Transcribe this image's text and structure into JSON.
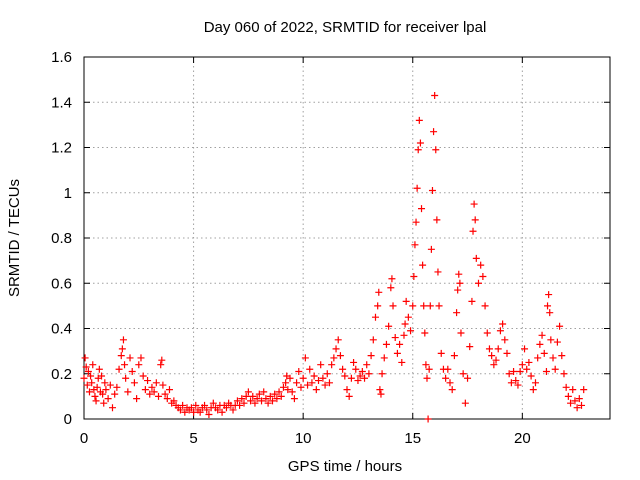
{
  "chart_data": {
    "type": "scatter",
    "title": "Day 060 of 2022, SRMTID for receiver lpal",
    "xlabel": "GPS time / hours",
    "ylabel": "SRMTID / TECUs",
    "xlim": [
      0,
      24
    ],
    "ylim": [
      0,
      1.6
    ],
    "xticks": [
      0,
      5,
      10,
      15,
      20
    ],
    "xtick_labels": [
      "0",
      "5",
      "10",
      "15",
      "20"
    ],
    "yticks": [
      0,
      0.2,
      0.4,
      0.6,
      0.8,
      1.0,
      1.2,
      1.4,
      1.6
    ],
    "ytick_labels": [
      "0",
      "0.2",
      "0.4",
      "0.6",
      "0.8",
      "1",
      "1.2",
      "1.4",
      "1.6"
    ],
    "grid": true,
    "marker": "+",
    "color": "#ff0000",
    "series": [
      {
        "name": "SRMTID",
        "points": [
          [
            0.0,
            0.18
          ],
          [
            0.05,
            0.27
          ],
          [
            0.1,
            0.23
          ],
          [
            0.15,
            0.15
          ],
          [
            0.2,
            0.21
          ],
          [
            0.25,
            0.12
          ],
          [
            0.3,
            0.19
          ],
          [
            0.35,
            0.16
          ],
          [
            0.4,
            0.24
          ],
          [
            0.45,
            0.13
          ],
          [
            0.5,
            0.1
          ],
          [
            0.55,
            0.08
          ],
          [
            0.6,
            0.14
          ],
          [
            0.65,
            0.18
          ],
          [
            0.7,
            0.22
          ],
          [
            0.75,
            0.12
          ],
          [
            0.8,
            0.19
          ],
          [
            0.85,
            0.11
          ],
          [
            0.9,
            0.07
          ],
          [
            0.95,
            0.16
          ],
          [
            1.0,
            0.13
          ],
          [
            1.1,
            0.09
          ],
          [
            1.2,
            0.15
          ],
          [
            1.3,
            0.05
          ],
          [
            1.4,
            0.11
          ],
          [
            1.5,
            0.14
          ],
          [
            1.6,
            0.22
          ],
          [
            1.7,
            0.28
          ],
          [
            1.75,
            0.31
          ],
          [
            1.8,
            0.35
          ],
          [
            1.85,
            0.24
          ],
          [
            1.9,
            0.18
          ],
          [
            2.0,
            0.12
          ],
          [
            2.1,
            0.27
          ],
          [
            2.2,
            0.21
          ],
          [
            2.3,
            0.16
          ],
          [
            2.4,
            0.09
          ],
          [
            2.5,
            0.24
          ],
          [
            2.6,
            0.27
          ],
          [
            2.7,
            0.19
          ],
          [
            2.8,
            0.13
          ],
          [
            2.9,
            0.17
          ],
          [
            3.0,
            0.11
          ],
          [
            3.1,
            0.14
          ],
          [
            3.2,
            0.12
          ],
          [
            3.3,
            0.16
          ],
          [
            3.4,
            0.1
          ],
          [
            3.5,
            0.24
          ],
          [
            3.55,
            0.26
          ],
          [
            3.6,
            0.15
          ],
          [
            3.7,
            0.11
          ],
          [
            3.8,
            0.09
          ],
          [
            3.9,
            0.13
          ],
          [
            4.0,
            0.07
          ],
          [
            4.1,
            0.08
          ],
          [
            4.2,
            0.06
          ],
          [
            4.3,
            0.05
          ],
          [
            4.4,
            0.04
          ],
          [
            4.5,
            0.06
          ],
          [
            4.6,
            0.03
          ],
          [
            4.7,
            0.05
          ],
          [
            4.8,
            0.04
          ],
          [
            4.9,
            0.05
          ],
          [
            5.0,
            0.03
          ],
          [
            5.1,
            0.06
          ],
          [
            5.2,
            0.04
          ],
          [
            5.3,
            0.03
          ],
          [
            5.4,
            0.05
          ],
          [
            5.5,
            0.06
          ],
          [
            5.6,
            0.04
          ],
          [
            5.7,
            0.02
          ],
          [
            5.8,
            0.05
          ],
          [
            5.9,
            0.07
          ],
          [
            6.0,
            0.05
          ],
          [
            6.1,
            0.04
          ],
          [
            6.2,
            0.06
          ],
          [
            6.3,
            0.03
          ],
          [
            6.4,
            0.06
          ],
          [
            6.5,
            0.05
          ],
          [
            6.6,
            0.07
          ],
          [
            6.7,
            0.06
          ],
          [
            6.8,
            0.04
          ],
          [
            6.9,
            0.06
          ],
          [
            7.0,
            0.08
          ],
          [
            7.1,
            0.06
          ],
          [
            7.2,
            0.09
          ],
          [
            7.3,
            0.07
          ],
          [
            7.4,
            0.1
          ],
          [
            7.5,
            0.12
          ],
          [
            7.6,
            0.08
          ],
          [
            7.7,
            0.1
          ],
          [
            7.8,
            0.07
          ],
          [
            7.9,
            0.09
          ],
          [
            8.0,
            0.11
          ],
          [
            8.1,
            0.08
          ],
          [
            8.2,
            0.12
          ],
          [
            8.3,
            0.09
          ],
          [
            8.4,
            0.07
          ],
          [
            8.5,
            0.1
          ],
          [
            8.6,
            0.08
          ],
          [
            8.7,
            0.11
          ],
          [
            8.8,
            0.09
          ],
          [
            8.9,
            0.12
          ],
          [
            9.0,
            0.1
          ],
          [
            9.1,
            0.14
          ],
          [
            9.2,
            0.16
          ],
          [
            9.25,
            0.19
          ],
          [
            9.3,
            0.13
          ],
          [
            9.4,
            0.18
          ],
          [
            9.5,
            0.12
          ],
          [
            9.6,
            0.09
          ],
          [
            9.7,
            0.16
          ],
          [
            9.8,
            0.21
          ],
          [
            9.9,
            0.14
          ],
          [
            10.0,
            0.18
          ],
          [
            10.1,
            0.27
          ],
          [
            10.2,
            0.15
          ],
          [
            10.3,
            0.22
          ],
          [
            10.4,
            0.16
          ],
          [
            10.5,
            0.19
          ],
          [
            10.6,
            0.13
          ],
          [
            10.7,
            0.17
          ],
          [
            10.8,
            0.24
          ],
          [
            10.9,
            0.18
          ],
          [
            11.0,
            0.15
          ],
          [
            11.1,
            0.2
          ],
          [
            11.2,
            0.16
          ],
          [
            11.3,
            0.24
          ],
          [
            11.4,
            0.27
          ],
          [
            11.5,
            0.31
          ],
          [
            11.6,
            0.35
          ],
          [
            11.7,
            0.28
          ],
          [
            11.8,
            0.22
          ],
          [
            11.9,
            0.19
          ],
          [
            12.0,
            0.13
          ],
          [
            12.1,
            0.1
          ],
          [
            12.2,
            0.18
          ],
          [
            12.3,
            0.25
          ],
          [
            12.4,
            0.22
          ],
          [
            12.5,
            0.17
          ],
          [
            12.6,
            0.19
          ],
          [
            12.7,
            0.21
          ],
          [
            12.8,
            0.18
          ],
          [
            12.9,
            0.24
          ],
          [
            13.0,
            0.2
          ],
          [
            13.1,
            0.28
          ],
          [
            13.2,
            0.35
          ],
          [
            13.3,
            0.45
          ],
          [
            13.4,
            0.5
          ],
          [
            13.45,
            0.56
          ],
          [
            13.5,
            0.13
          ],
          [
            13.55,
            0.11
          ],
          [
            13.6,
            0.2
          ],
          [
            13.7,
            0.27
          ],
          [
            13.8,
            0.33
          ],
          [
            13.9,
            0.41
          ],
          [
            14.0,
            0.58
          ],
          [
            14.05,
            0.62
          ],
          [
            14.1,
            0.5
          ],
          [
            14.2,
            0.36
          ],
          [
            14.3,
            0.29
          ],
          [
            14.4,
            0.33
          ],
          [
            14.5,
            0.25
          ],
          [
            14.6,
            0.37
          ],
          [
            14.65,
            0.42
          ],
          [
            14.7,
            0.52
          ],
          [
            14.8,
            0.45
          ],
          [
            14.9,
            0.39
          ],
          [
            15.0,
            0.5
          ],
          [
            15.05,
            0.63
          ],
          [
            15.1,
            0.77
          ],
          [
            15.15,
            0.87
          ],
          [
            15.2,
            1.02
          ],
          [
            15.25,
            1.19
          ],
          [
            15.3,
            1.32
          ],
          [
            15.35,
            1.22
          ],
          [
            15.4,
            0.93
          ],
          [
            15.45,
            0.68
          ],
          [
            15.5,
            0.5
          ],
          [
            15.55,
            0.38
          ],
          [
            15.6,
            0.24
          ],
          [
            15.65,
            0.18
          ],
          [
            15.7,
            0.0
          ],
          [
            15.75,
            0.22
          ],
          [
            15.8,
            0.5
          ],
          [
            15.85,
            0.75
          ],
          [
            15.9,
            1.01
          ],
          [
            15.95,
            1.27
          ],
          [
            16.0,
            1.43
          ],
          [
            16.05,
            1.19
          ],
          [
            16.1,
            0.88
          ],
          [
            16.15,
            0.65
          ],
          [
            16.2,
            0.5
          ],
          [
            16.3,
            0.29
          ],
          [
            16.4,
            0.22
          ],
          [
            16.5,
            0.18
          ],
          [
            16.6,
            0.22
          ],
          [
            16.7,
            0.16
          ],
          [
            16.8,
            0.13
          ],
          [
            16.9,
            0.28
          ],
          [
            17.0,
            0.47
          ],
          [
            17.05,
            0.57
          ],
          [
            17.1,
            0.64
          ],
          [
            17.15,
            0.6
          ],
          [
            17.2,
            0.38
          ],
          [
            17.3,
            0.2
          ],
          [
            17.4,
            0.07
          ],
          [
            17.5,
            0.18
          ],
          [
            17.6,
            0.32
          ],
          [
            17.7,
            0.52
          ],
          [
            17.75,
            0.83
          ],
          [
            17.8,
            0.95
          ],
          [
            17.85,
            0.88
          ],
          [
            17.9,
            0.71
          ],
          [
            18.0,
            0.6
          ],
          [
            18.1,
            0.68
          ],
          [
            18.2,
            0.63
          ],
          [
            18.3,
            0.5
          ],
          [
            18.4,
            0.38
          ],
          [
            18.5,
            0.31
          ],
          [
            18.6,
            0.28
          ],
          [
            18.7,
            0.24
          ],
          [
            18.8,
            0.26
          ],
          [
            18.9,
            0.31
          ],
          [
            19.0,
            0.39
          ],
          [
            19.1,
            0.42
          ],
          [
            19.2,
            0.35
          ],
          [
            19.3,
            0.29
          ],
          [
            19.4,
            0.2
          ],
          [
            19.5,
            0.16
          ],
          [
            19.6,
            0.21
          ],
          [
            19.7,
            0.17
          ],
          [
            19.8,
            0.15
          ],
          [
            19.9,
            0.21
          ],
          [
            20.0,
            0.24
          ],
          [
            20.1,
            0.31
          ],
          [
            20.2,
            0.22
          ],
          [
            20.3,
            0.25
          ],
          [
            20.4,
            0.19
          ],
          [
            20.5,
            0.13
          ],
          [
            20.6,
            0.16
          ],
          [
            20.7,
            0.27
          ],
          [
            20.8,
            0.33
          ],
          [
            20.9,
            0.37
          ],
          [
            21.0,
            0.29
          ],
          [
            21.1,
            0.21
          ],
          [
            21.15,
            0.5
          ],
          [
            21.2,
            0.55
          ],
          [
            21.25,
            0.47
          ],
          [
            21.3,
            0.35
          ],
          [
            21.4,
            0.27
          ],
          [
            21.5,
            0.22
          ],
          [
            21.6,
            0.34
          ],
          [
            21.7,
            0.41
          ],
          [
            21.8,
            0.28
          ],
          [
            21.9,
            0.2
          ],
          [
            22.0,
            0.14
          ],
          [
            22.1,
            0.1
          ],
          [
            22.2,
            0.07
          ],
          [
            22.3,
            0.13
          ],
          [
            22.4,
            0.08
          ],
          [
            22.5,
            0.05
          ],
          [
            22.6,
            0.09
          ],
          [
            22.7,
            0.06
          ],
          [
            22.8,
            0.13
          ]
        ]
      }
    ]
  }
}
